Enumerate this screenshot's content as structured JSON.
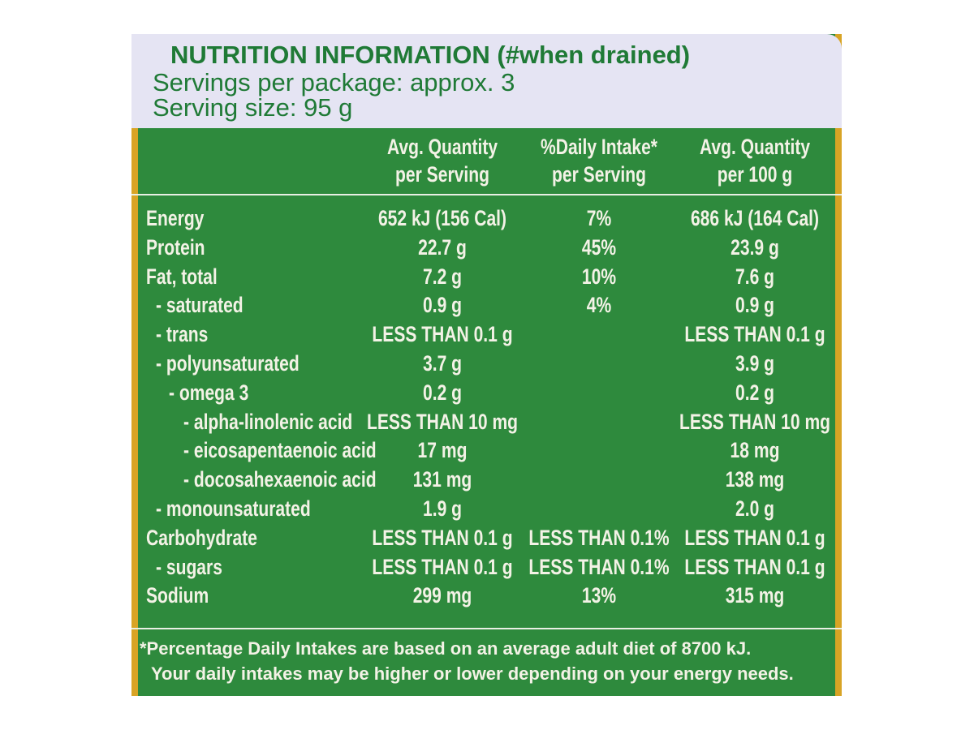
{
  "header": {
    "title": "NUTRITION INFORMATION (#when drained)",
    "servings": "Servings per package: approx. 3",
    "serving_size": "Serving size: 95 g"
  },
  "table": {
    "columns": [
      [
        "Avg. Quantity",
        "per Serving"
      ],
      [
        "%Daily Intake*",
        "per Serving"
      ],
      [
        "Avg. Quantity",
        "per 100 g"
      ]
    ],
    "rows": [
      [
        "Energy",
        "652 kJ (156 Cal)",
        "7%",
        "686 kJ (164 Cal)"
      ],
      [
        "Protein",
        "22.7 g",
        "45%",
        "23.9 g"
      ],
      [
        "Fat, total",
        "7.2 g",
        "10%",
        "7.6 g"
      ],
      [
        "- saturated",
        "0.9 g",
        "4%",
        "0.9 g"
      ],
      [
        "- trans",
        "LESS THAN 0.1 g",
        null,
        "LESS THAN 0.1 g"
      ],
      [
        "- polyunsaturated",
        "3.7 g",
        null,
        "3.9 g"
      ],
      [
        "- omega 3",
        "0.2 g",
        null,
        "0.2 g"
      ],
      [
        "- alpha-linolenic acid",
        "LESS THAN 10 mg",
        null,
        "LESS THAN 10 mg"
      ],
      [
        "- eicosapentaenoic acid",
        "17 mg",
        null,
        "18 mg"
      ],
      [
        "- docosahexaenoic acid",
        "131 mg",
        null,
        "138 mg"
      ],
      [
        "- monounsaturated",
        "1.9 g",
        null,
        "2.0 g"
      ],
      [
        "Carbohydrate",
        "LESS THAN 0.1 g",
        "LESS THAN 0.1%",
        "LESS THAN 0.1 g"
      ],
      [
        "- sugars",
        "LESS THAN 0.1 g",
        "LESS THAN 0.1%",
        "LESS THAN 0.1 g"
      ],
      [
        "Sodium",
        "299 mg",
        "13%",
        "315 mg"
      ]
    ]
  },
  "footnote": [
    "*Percentage Daily Intakes are based on an average adult diet of 8700 kJ.",
    "Your daily intakes may be higher or lower depending on your energy needs."
  ]
}
